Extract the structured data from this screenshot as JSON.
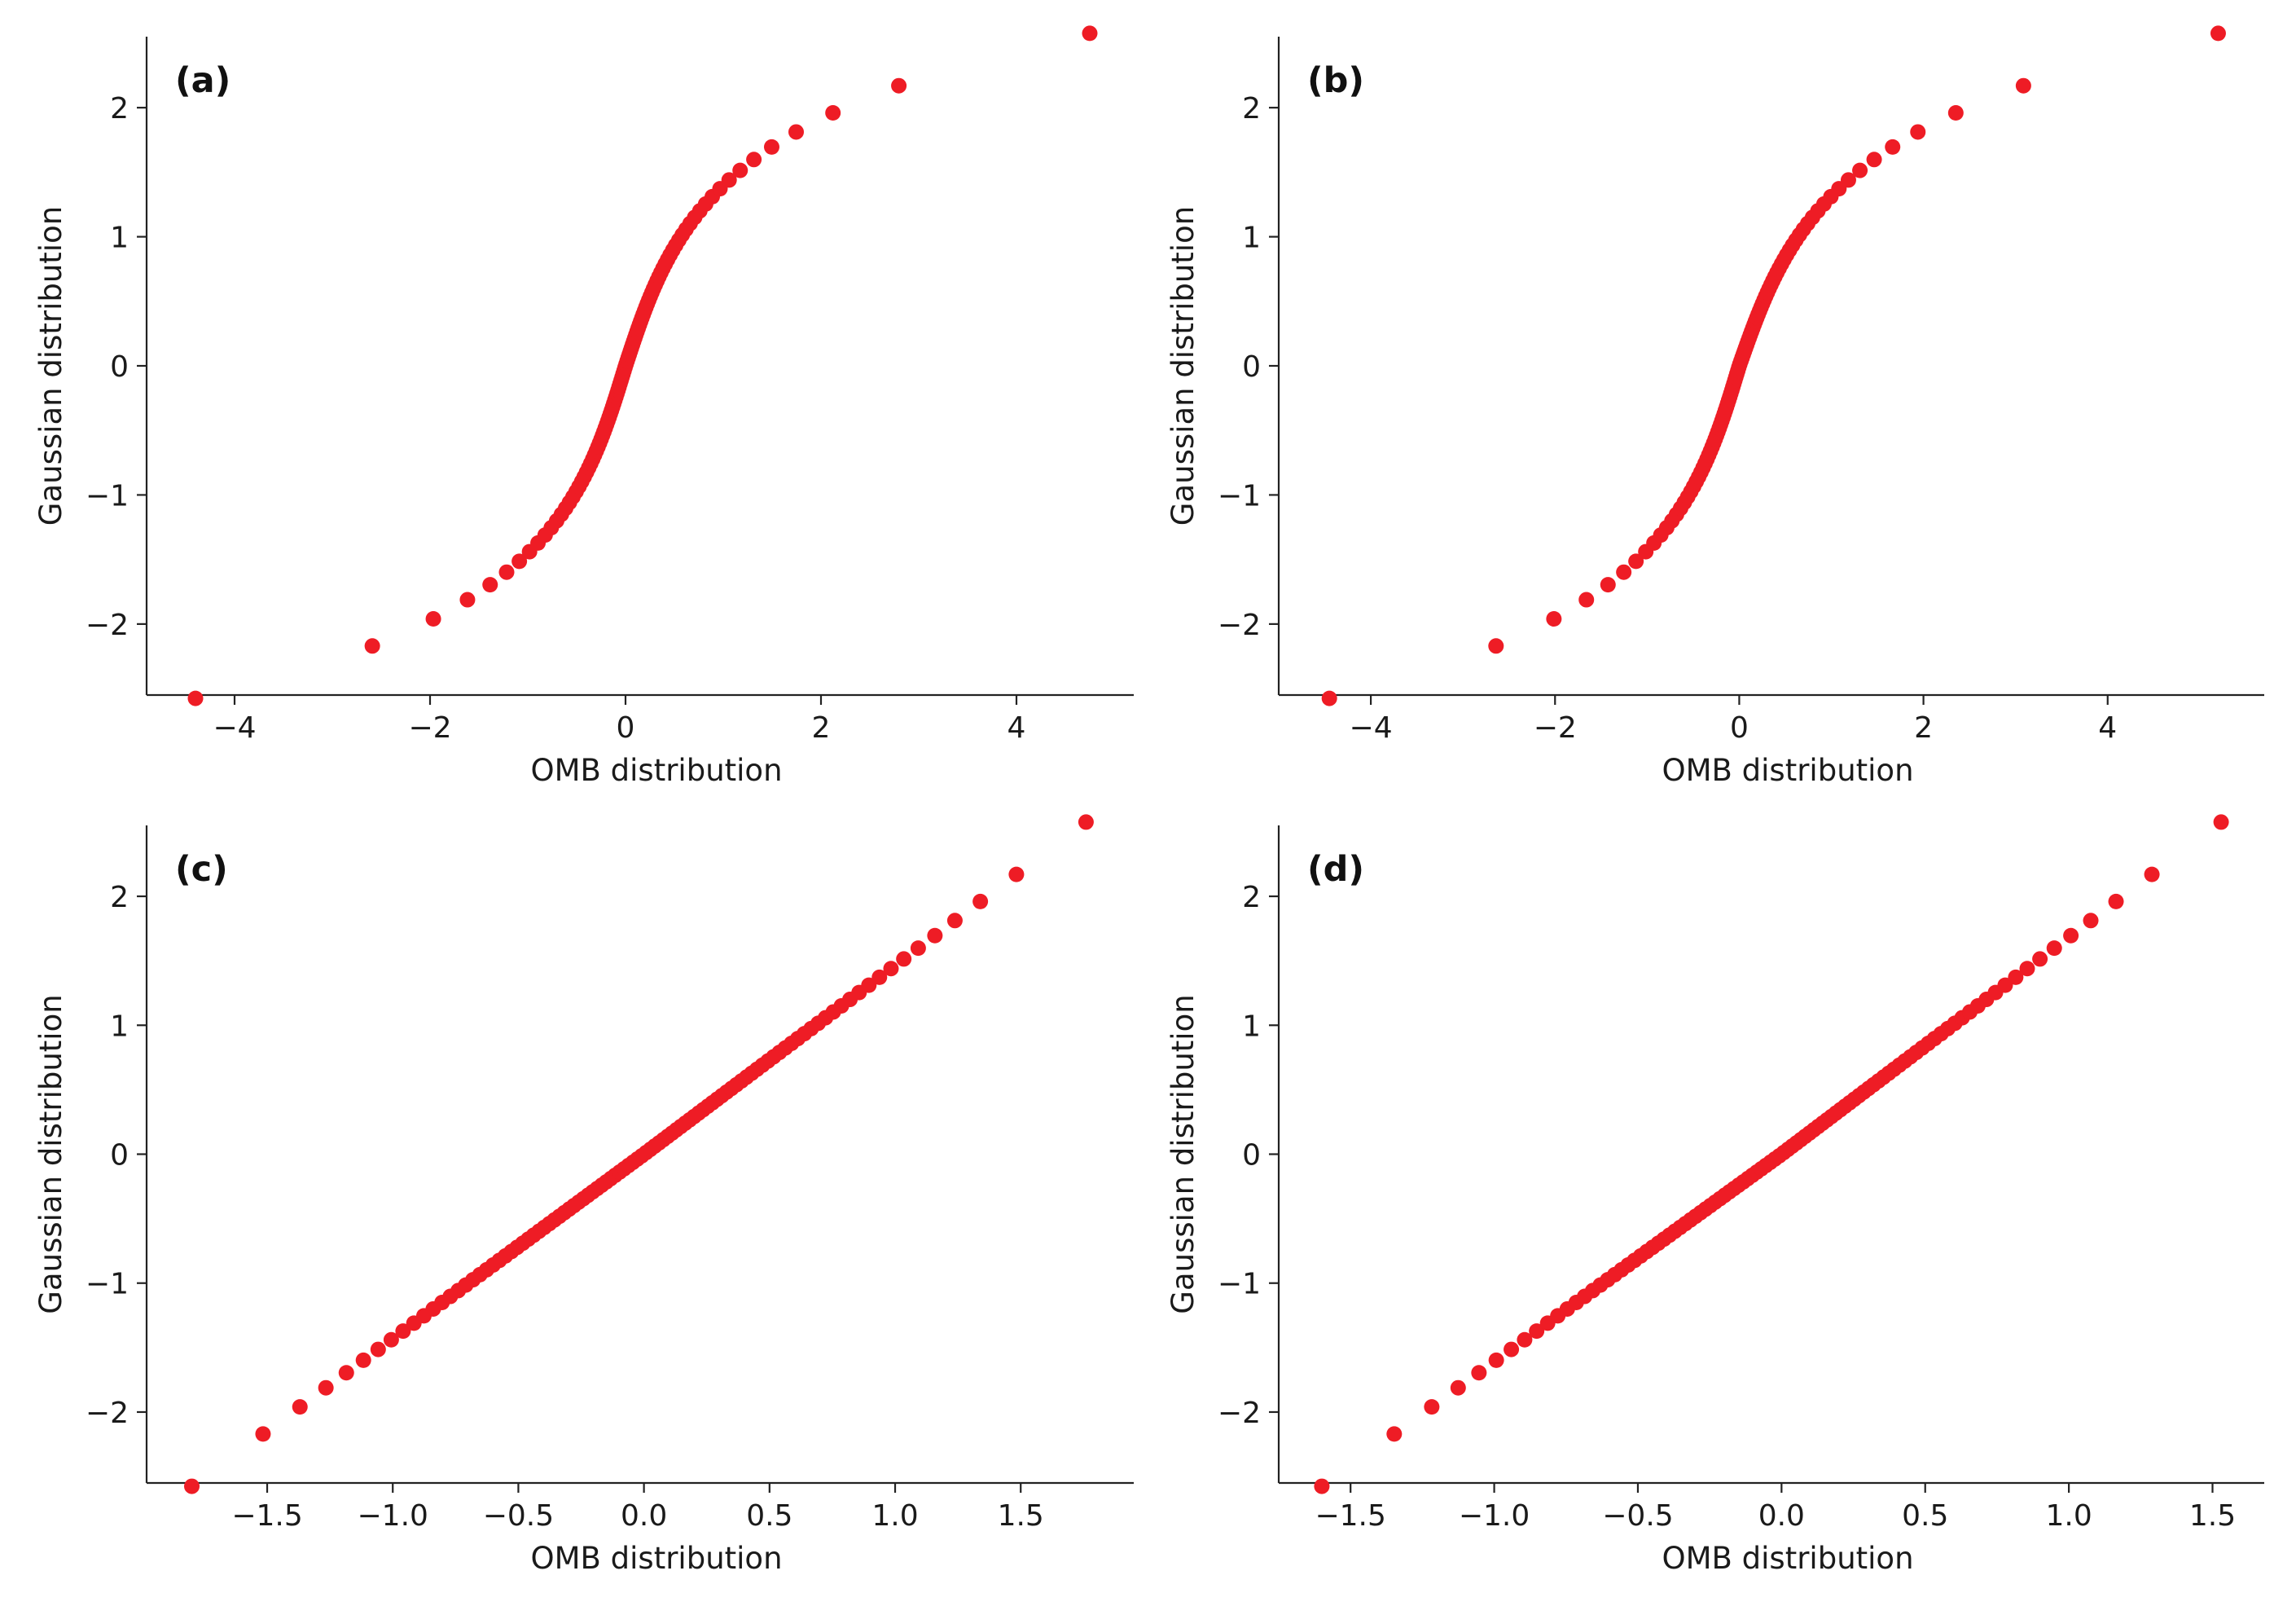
{
  "chart_data": [
    {
      "type": "scatter",
      "label": "(a)",
      "xlabel": "OMB distribution",
      "ylabel": "Gaussian distribution",
      "xlim": [
        -4.9,
        5.2
      ],
      "ylim": [
        -2.55,
        2.55
      ],
      "xticks": [
        -4,
        -2,
        0,
        2,
        4
      ],
      "xtick_labels": [
        "−4",
        "−2",
        "0",
        "2",
        "4"
      ],
      "yticks": [
        -2,
        -1,
        0,
        1,
        2
      ],
      "ytick_labels": [
        "−2",
        "−1",
        "0",
        "1",
        "2"
      ],
      "shape": "s",
      "scale": 1.3,
      "xmin": -4.4,
      "xmax": 4.75
    },
    {
      "type": "scatter",
      "label": "(b)",
      "xlabel": "OMB distribution",
      "ylabel": "Gaussian distribution",
      "xlim": [
        -5.0,
        5.7
      ],
      "ylim": [
        -2.55,
        2.55
      ],
      "xticks": [
        -4,
        -2,
        0,
        2,
        4
      ],
      "xtick_labels": [
        "−4",
        "−2",
        "0",
        "2",
        "4"
      ],
      "yticks": [
        -2,
        -1,
        0,
        1,
        2
      ],
      "ytick_labels": [
        "−2",
        "−1",
        "0",
        "1",
        "2"
      ],
      "shape": "s",
      "scale": 1.28,
      "xmin": -4.45,
      "xmax": 5.2
    },
    {
      "type": "scatter",
      "label": "(c)",
      "xlabel": "OMB distribution",
      "ylabel": "Gaussian distribution",
      "xlim": [
        -1.98,
        1.95
      ],
      "ylim": [
        -2.55,
        2.55
      ],
      "xticks": [
        -1.5,
        -1.0,
        -0.5,
        0.0,
        0.5,
        1.0,
        1.5
      ],
      "xtick_labels": [
        "−1.5",
        "−1.0",
        "−0.5",
        "0.0",
        "0.5",
        "1.0",
        "1.5"
      ],
      "yticks": [
        -2,
        -1,
        0,
        1,
        2
      ],
      "ytick_labels": [
        "−2",
        "−1",
        "0",
        "1",
        "2"
      ],
      "shape": "linear",
      "xmin": -1.8,
      "xmax": 1.76
    },
    {
      "type": "scatter",
      "label": "(d)",
      "xlabel": "OMB distribution",
      "ylabel": "Gaussian distribution",
      "xlim": [
        -1.75,
        1.68
      ],
      "ylim": [
        -2.55,
        2.55
      ],
      "xticks": [
        -1.5,
        -1.0,
        -0.5,
        0.0,
        0.5,
        1.0,
        1.5
      ],
      "xtick_labels": [
        "−1.5",
        "−1.0",
        "−0.5",
        "0.0",
        "0.5",
        "1.0",
        "1.5"
      ],
      "yticks": [
        -2,
        -1,
        0,
        1,
        2
      ],
      "ytick_labels": [
        "−2",
        "−1",
        "0",
        "1",
        "2"
      ],
      "shape": "linear",
      "xmin": -1.6,
      "xmax": 1.53
    }
  ],
  "colors": {
    "marker": "#ee1c25",
    "axes": "#222222"
  }
}
